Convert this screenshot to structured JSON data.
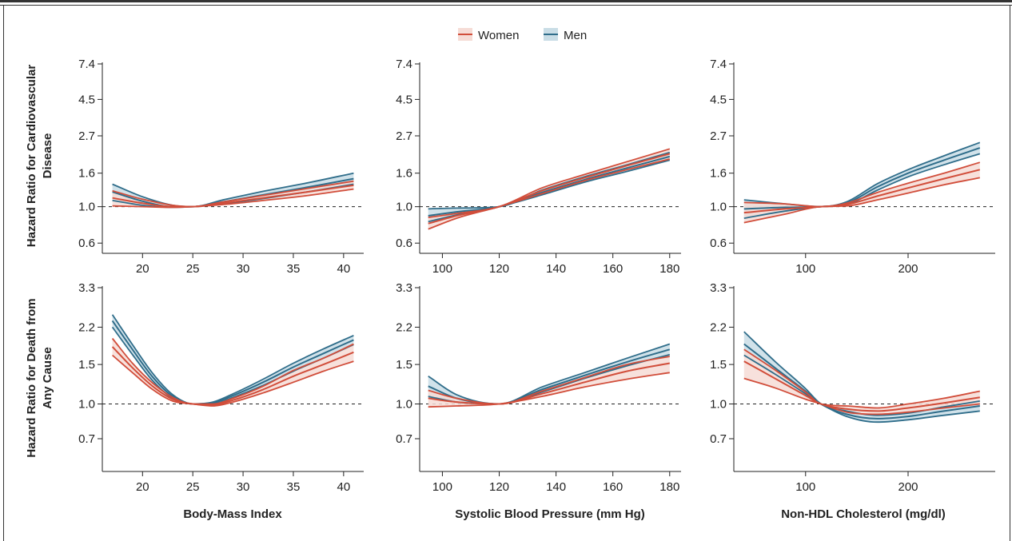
{
  "legend": {
    "items": [
      {
        "label": "Women",
        "color": "#d14d3a",
        "fill": "#f6dcd6"
      },
      {
        "label": "Men",
        "color": "#2f6d8a",
        "fill": "#c9dde6"
      }
    ]
  },
  "colors": {
    "women": "#d14d3a",
    "women_fill": "#f6dcd6",
    "men": "#2f6d8a",
    "men_fill": "#c9dde6",
    "reference_line": "#222222"
  },
  "chart_data": [
    {
      "type": "line",
      "row": "cardiovascular",
      "col": "bmi",
      "ylabel": "Hazard Ratio for Cardiovascular Disease",
      "yscale": "log",
      "ylim": [
        0.52,
        7.4
      ],
      "yticks": [
        0.6,
        1.0,
        1.6,
        2.7,
        4.5,
        7.4
      ],
      "ytick_labels": [
        "0.6",
        "1.0",
        "1.6",
        "2.7",
        "4.5",
        "7.4"
      ],
      "xlim": [
        16,
        42
      ],
      "xticks": [
        20,
        25,
        30,
        35,
        40
      ],
      "xtick_labels": [
        "20",
        "25",
        "30",
        "35",
        "40"
      ],
      "reference": 1.0,
      "x": [
        17,
        20,
        23,
        25,
        28,
        32,
        36,
        41
      ],
      "series": [
        {
          "name": "Women",
          "values": [
            1.13,
            1.05,
            1.0,
            1.0,
            1.05,
            1.13,
            1.22,
            1.35
          ],
          "lower": [
            1.01,
            1.0,
            0.99,
            1.0,
            1.03,
            1.09,
            1.16,
            1.28
          ],
          "upper": [
            1.25,
            1.11,
            1.02,
            1.0,
            1.07,
            1.17,
            1.28,
            1.43
          ]
        },
        {
          "name": "Men",
          "values": [
            1.23,
            1.08,
            1.0,
            1.0,
            1.07,
            1.18,
            1.3,
            1.48
          ],
          "lower": [
            1.09,
            1.02,
            0.99,
            1.0,
            1.04,
            1.12,
            1.22,
            1.37
          ],
          "upper": [
            1.37,
            1.15,
            1.02,
            1.0,
            1.1,
            1.24,
            1.38,
            1.6
          ]
        }
      ]
    },
    {
      "type": "line",
      "row": "cardiovascular",
      "col": "sbp",
      "ylabel": "",
      "yscale": "log",
      "ylim": [
        0.52,
        7.4
      ],
      "yticks": [
        0.6,
        1.0,
        1.6,
        2.7,
        4.5,
        7.4
      ],
      "ytick_labels": [
        "0.6",
        "1.0",
        "1.6",
        "2.7",
        "4.5",
        "7.4"
      ],
      "xlim": [
        92,
        184
      ],
      "xticks": [
        100,
        120,
        140,
        160,
        180
      ],
      "xtick_labels": [
        "100",
        "120",
        "140",
        "160",
        "180"
      ],
      "reference": 1.0,
      "x": [
        95,
        105,
        120,
        135,
        150,
        165,
        180
      ],
      "series": [
        {
          "name": "Women",
          "values": [
            0.79,
            0.88,
            1.0,
            1.25,
            1.5,
            1.78,
            2.1
          ],
          "lower": [
            0.73,
            0.85,
            1.0,
            1.2,
            1.44,
            1.68,
            1.95
          ],
          "upper": [
            0.86,
            0.91,
            1.0,
            1.3,
            1.57,
            1.88,
            2.25
          ]
        },
        {
          "name": "Men",
          "values": [
            0.88,
            0.93,
            1.0,
            1.22,
            1.46,
            1.72,
            2.02
          ],
          "lower": [
            0.81,
            0.89,
            1.0,
            1.18,
            1.41,
            1.64,
            1.92
          ],
          "upper": [
            0.97,
            0.98,
            1.0,
            1.26,
            1.52,
            1.8,
            2.14
          ]
        }
      ]
    },
    {
      "type": "line",
      "row": "cardiovascular",
      "col": "cholesterol",
      "ylabel": "",
      "yscale": "log",
      "ylim": [
        0.52,
        7.4
      ],
      "yticks": [
        0.6,
        1.0,
        1.6,
        2.7,
        4.5,
        7.4
      ],
      "ytick_labels": [
        "0.6",
        "1.0",
        "1.6",
        "2.7",
        "4.5",
        "7.4"
      ],
      "xlim": [
        30,
        285
      ],
      "xticks": [
        100,
        200
      ],
      "xtick_labels": [
        "100",
        "200"
      ],
      "reference": 1.0,
      "x": [
        40,
        80,
        115,
        140,
        170,
        200,
        235,
        270
      ],
      "series": [
        {
          "name": "Women",
          "values": [
            0.92,
            0.97,
            1.0,
            1.03,
            1.16,
            1.3,
            1.48,
            1.68
          ],
          "lower": [
            0.8,
            0.9,
            1.0,
            1.01,
            1.1,
            1.21,
            1.36,
            1.5
          ],
          "upper": [
            1.06,
            1.04,
            1.0,
            1.05,
            1.22,
            1.39,
            1.6,
            1.86
          ]
        },
        {
          "name": "Men",
          "values": [
            0.97,
            0.99,
            1.0,
            1.05,
            1.32,
            1.6,
            1.92,
            2.28
          ],
          "lower": [
            0.85,
            0.94,
            1.0,
            1.03,
            1.26,
            1.52,
            1.8,
            2.1
          ],
          "upper": [
            1.1,
            1.04,
            1.0,
            1.07,
            1.38,
            1.68,
            2.04,
            2.46
          ]
        }
      ]
    },
    {
      "type": "line",
      "row": "death",
      "col": "bmi",
      "ylabel": "Hazard Ratio for Death from Any Cause",
      "yscale": "log",
      "ylim": [
        0.5,
        3.3
      ],
      "yticks": [
        0.7,
        1.0,
        1.5,
        2.2,
        3.3
      ],
      "ytick_labels": [
        "0.7",
        "1.0",
        "1.5",
        "2.2",
        "3.3"
      ],
      "xlim": [
        16,
        42
      ],
      "xticks": [
        20,
        25,
        30,
        35,
        40
      ],
      "xtick_labels": [
        "20",
        "25",
        "30",
        "35",
        "40"
      ],
      "reference": 1.0,
      "x": [
        17,
        19,
        21,
        23,
        25,
        27,
        29,
        32,
        35,
        38,
        41
      ],
      "series": [
        {
          "name": "Women",
          "values": [
            1.8,
            1.45,
            1.2,
            1.05,
            1.0,
            0.99,
            1.04,
            1.16,
            1.33,
            1.5,
            1.7
          ],
          "lower": [
            1.65,
            1.38,
            1.16,
            1.03,
            1.0,
            0.98,
            1.02,
            1.12,
            1.25,
            1.4,
            1.55
          ],
          "upper": [
            1.96,
            1.52,
            1.24,
            1.07,
            1.0,
            1.0,
            1.06,
            1.2,
            1.41,
            1.6,
            1.85
          ]
        },
        {
          "name": "Men",
          "values": [
            2.35,
            1.75,
            1.32,
            1.08,
            1.0,
            1.01,
            1.09,
            1.25,
            1.46,
            1.68,
            1.93
          ],
          "lower": [
            2.2,
            1.66,
            1.27,
            1.06,
            1.0,
            1.0,
            1.07,
            1.21,
            1.4,
            1.6,
            1.84
          ],
          "upper": [
            2.5,
            1.84,
            1.37,
            1.1,
            1.0,
            1.02,
            1.11,
            1.29,
            1.52,
            1.76,
            2.02
          ]
        }
      ]
    },
    {
      "type": "line",
      "row": "death",
      "col": "sbp",
      "ylabel": "",
      "yscale": "log",
      "ylim": [
        0.5,
        3.3
      ],
      "yticks": [
        0.7,
        1.0,
        1.5,
        2.2,
        3.3
      ],
      "ytick_labels": [
        "0.7",
        "1.0",
        "1.5",
        "2.2",
        "3.3"
      ],
      "xlim": [
        92,
        184
      ],
      "xticks": [
        100,
        120,
        140,
        160,
        180
      ],
      "xtick_labels": [
        "100",
        "120",
        "140",
        "160",
        "180"
      ],
      "reference": 1.0,
      "x": [
        95,
        105,
        120,
        135,
        150,
        165,
        180
      ],
      "series": [
        {
          "name": "Women",
          "values": [
            1.06,
            1.02,
            1.0,
            1.11,
            1.25,
            1.4,
            1.52
          ],
          "lower": [
            0.97,
            0.98,
            1.0,
            1.08,
            1.19,
            1.29,
            1.38
          ],
          "upper": [
            1.15,
            1.06,
            1.0,
            1.14,
            1.31,
            1.5,
            1.63
          ]
        },
        {
          "name": "Men",
          "values": [
            1.2,
            1.06,
            1.0,
            1.16,
            1.34,
            1.54,
            1.75
          ],
          "lower": [
            1.08,
            1.02,
            1.0,
            1.13,
            1.3,
            1.48,
            1.66
          ],
          "upper": [
            1.33,
            1.1,
            1.0,
            1.19,
            1.38,
            1.6,
            1.85
          ]
        }
      ]
    },
    {
      "type": "line",
      "row": "death",
      "col": "cholesterol",
      "ylabel": "",
      "yscale": "log",
      "ylim": [
        0.5,
        3.3
      ],
      "yticks": [
        0.7,
        1.0,
        1.5,
        2.2,
        3.3
      ],
      "ytick_labels": [
        "0.7",
        "1.0",
        "1.5",
        "2.2",
        "3.3"
      ],
      "xlim": [
        30,
        285
      ],
      "xticks": [
        100,
        200
      ],
      "xtick_labels": [
        "100",
        "200"
      ],
      "reference": 1.0,
      "x": [
        40,
        70,
        100,
        115,
        140,
        170,
        200,
        235,
        270
      ],
      "series": [
        {
          "name": "Women",
          "values": [
            1.55,
            1.3,
            1.09,
            1.0,
            0.95,
            0.93,
            0.96,
            1.01,
            1.07
          ],
          "lower": [
            1.3,
            1.18,
            1.05,
            1.0,
            0.92,
            0.9,
            0.92,
            0.96,
            1.0
          ],
          "upper": [
            1.75,
            1.42,
            1.13,
            1.0,
            0.98,
            0.96,
            1.0,
            1.06,
            1.14
          ]
        },
        {
          "name": "Men",
          "values": [
            1.85,
            1.45,
            1.14,
            1.0,
            0.9,
            0.86,
            0.88,
            0.93,
            0.98
          ],
          "lower": [
            1.65,
            1.36,
            1.11,
            1.0,
            0.88,
            0.83,
            0.85,
            0.89,
            0.93
          ],
          "upper": [
            2.1,
            1.55,
            1.17,
            1.0,
            0.93,
            0.89,
            0.91,
            0.97,
            1.03
          ]
        }
      ]
    }
  ],
  "xaxis_titles": {
    "bmi": "Body-Mass Index",
    "sbp": "Systolic Blood Pressure (mm Hg)",
    "cholesterol": "Non-HDL Cholesterol (mg/dl)"
  }
}
